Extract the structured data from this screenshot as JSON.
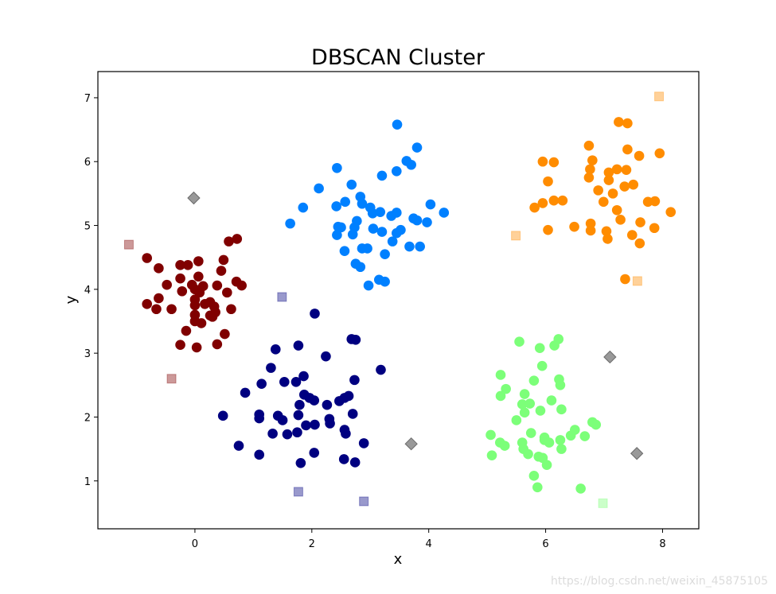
{
  "chart_data": {
    "type": "scatter",
    "title": "DBSCAN Cluster",
    "xlabel": "x",
    "ylabel": "y",
    "xlim": [
      -1.66,
      8.62
    ],
    "ylim": [
      0.25,
      7.41
    ],
    "xticks": [
      0,
      2,
      4,
      6,
      8
    ],
    "yticks": [
      1,
      2,
      3,
      4,
      5,
      6,
      7
    ],
    "grid": false,
    "legend": null,
    "series": [
      {
        "name": "cluster-0",
        "color": "#800000",
        "marker": "circle",
        "points": [
          [
            0.72,
            4.79
          ],
          [
            0.58,
            4.75
          ],
          [
            -0.82,
            4.49
          ],
          [
            -0.62,
            4.33
          ],
          [
            -0.25,
            4.38
          ],
          [
            -0.12,
            4.38
          ],
          [
            0.06,
            4.44
          ],
          [
            0.49,
            4.46
          ],
          [
            0.45,
            4.29
          ],
          [
            -0.48,
            4.07
          ],
          [
            -0.25,
            4.17
          ],
          [
            -0.22,
            3.97
          ],
          [
            -0.05,
            4.07
          ],
          [
            0.06,
            4.2
          ],
          [
            0.14,
            4.05
          ],
          [
            0.38,
            4.06
          ],
          [
            0.71,
            4.12
          ],
          [
            0.8,
            4.06
          ],
          [
            -0.62,
            3.86
          ],
          [
            0.55,
            3.95
          ],
          [
            -0.82,
            3.77
          ],
          [
            -0.66,
            3.69
          ],
          [
            -0.4,
            3.69
          ],
          [
            0.0,
            3.84
          ],
          [
            0.0,
            3.75
          ],
          [
            0.17,
            3.77
          ],
          [
            0.26,
            3.8
          ],
          [
            0.33,
            3.73
          ],
          [
            0.35,
            3.64
          ],
          [
            0.26,
            3.59
          ],
          [
            0.0,
            3.6
          ],
          [
            0.0,
            3.5
          ],
          [
            0.11,
            3.47
          ],
          [
            0.3,
            3.57
          ],
          [
            0.62,
            3.69
          ],
          [
            -0.15,
            3.35
          ],
          [
            0.51,
            3.3
          ],
          [
            0.38,
            3.14
          ],
          [
            -0.25,
            3.13
          ],
          [
            0.03,
            3.09
          ],
          [
            0.0,
            4.0
          ],
          [
            0.08,
            3.95
          ]
        ]
      },
      {
        "name": "cluster-1",
        "color": "#000080",
        "marker": "circle",
        "points": [
          [
            2.05,
            3.62
          ],
          [
            2.68,
            3.22
          ],
          [
            2.75,
            3.21
          ],
          [
            1.38,
            3.06
          ],
          [
            1.77,
            3.12
          ],
          [
            2.24,
            2.95
          ],
          [
            1.3,
            2.77
          ],
          [
            3.18,
            2.74
          ],
          [
            1.14,
            2.52
          ],
          [
            1.53,
            2.55
          ],
          [
            1.73,
            2.55
          ],
          [
            1.86,
            2.64
          ],
          [
            2.73,
            2.58
          ],
          [
            0.86,
            2.38
          ],
          [
            1.87,
            2.35
          ],
          [
            1.96,
            2.3
          ],
          [
            2.04,
            2.26
          ],
          [
            2.63,
            2.33
          ],
          [
            2.56,
            2.3
          ],
          [
            2.47,
            2.25
          ],
          [
            2.26,
            2.19
          ],
          [
            1.79,
            2.19
          ],
          [
            0.48,
            2.02
          ],
          [
            1.1,
            2.04
          ],
          [
            1.1,
            1.98
          ],
          [
            1.42,
            2.02
          ],
          [
            1.5,
            1.95
          ],
          [
            1.77,
            2.03
          ],
          [
            2.7,
            2.05
          ],
          [
            1.9,
            1.87
          ],
          [
            2.05,
            1.88
          ],
          [
            2.3,
            1.97
          ],
          [
            2.31,
            1.9
          ],
          [
            2.56,
            1.8
          ],
          [
            2.58,
            1.74
          ],
          [
            1.33,
            1.74
          ],
          [
            1.58,
            1.73
          ],
          [
            1.75,
            1.76
          ],
          [
            0.75,
            1.55
          ],
          [
            2.89,
            1.59
          ],
          [
            1.1,
            1.41
          ],
          [
            2.04,
            1.44
          ],
          [
            2.55,
            1.34
          ],
          [
            2.74,
            1.29
          ],
          [
            1.81,
            1.28
          ]
        ]
      },
      {
        "name": "cluster-2",
        "color": "#0080ff",
        "marker": "circle",
        "points": [
          [
            3.46,
            6.58
          ],
          [
            3.8,
            6.22
          ],
          [
            3.62,
            6.01
          ],
          [
            3.7,
            5.95
          ],
          [
            2.43,
            5.9
          ],
          [
            3.2,
            5.78
          ],
          [
            3.45,
            5.85
          ],
          [
            2.68,
            5.64
          ],
          [
            2.12,
            5.58
          ],
          [
            2.83,
            5.45
          ],
          [
            2.57,
            5.37
          ],
          [
            4.03,
            5.33
          ],
          [
            1.85,
            5.28
          ],
          [
            2.42,
            5.3
          ],
          [
            2.86,
            5.34
          ],
          [
            3.0,
            5.28
          ],
          [
            3.04,
            5.19
          ],
          [
            3.17,
            5.21
          ],
          [
            3.36,
            5.15
          ],
          [
            3.45,
            5.2
          ],
          [
            4.26,
            5.2
          ],
          [
            1.63,
            5.03
          ],
          [
            2.77,
            5.07
          ],
          [
            2.73,
            4.97
          ],
          [
            2.45,
            4.98
          ],
          [
            2.5,
            4.97
          ],
          [
            3.74,
            5.11
          ],
          [
            3.8,
            5.08
          ],
          [
            3.97,
            5.05
          ],
          [
            3.05,
            4.95
          ],
          [
            3.2,
            4.9
          ],
          [
            3.45,
            4.88
          ],
          [
            3.52,
            4.93
          ],
          [
            2.43,
            4.85
          ],
          [
            2.7,
            4.86
          ],
          [
            3.38,
            4.75
          ],
          [
            3.67,
            4.67
          ],
          [
            3.85,
            4.67
          ],
          [
            2.86,
            4.64
          ],
          [
            2.95,
            4.64
          ],
          [
            2.56,
            4.6
          ],
          [
            3.25,
            4.55
          ],
          [
            2.83,
            4.35
          ],
          [
            2.75,
            4.4
          ],
          [
            3.15,
            4.15
          ],
          [
            3.25,
            4.12
          ],
          [
            2.97,
            4.06
          ]
        ]
      },
      {
        "name": "cluster-3",
        "color": "#ff8c00",
        "marker": "circle",
        "points": [
          [
            7.25,
            6.62
          ],
          [
            7.4,
            6.6
          ],
          [
            6.74,
            6.25
          ],
          [
            7.4,
            6.19
          ],
          [
            7.6,
            6.09
          ],
          [
            7.95,
            6.13
          ],
          [
            5.95,
            6.0
          ],
          [
            6.14,
            5.99
          ],
          [
            6.8,
            6.02
          ],
          [
            6.76,
            5.88
          ],
          [
            7.08,
            5.83
          ],
          [
            7.22,
            5.88
          ],
          [
            7.38,
            5.87
          ],
          [
            6.74,
            5.75
          ],
          [
            7.08,
            5.71
          ],
          [
            6.04,
            5.69
          ],
          [
            6.9,
            5.55
          ],
          [
            7.15,
            5.5
          ],
          [
            7.35,
            5.61
          ],
          [
            7.5,
            5.64
          ],
          [
            6.14,
            5.39
          ],
          [
            6.29,
            5.39
          ],
          [
            5.95,
            5.35
          ],
          [
            6.99,
            5.37
          ],
          [
            7.75,
            5.37
          ],
          [
            7.87,
            5.38
          ],
          [
            5.81,
            5.28
          ],
          [
            7.22,
            5.24
          ],
          [
            8.14,
            5.21
          ],
          [
            7.28,
            5.09
          ],
          [
            7.62,
            5.05
          ],
          [
            6.77,
            5.03
          ],
          [
            6.49,
            4.98
          ],
          [
            6.04,
            4.93
          ],
          [
            6.77,
            4.92
          ],
          [
            7.04,
            4.91
          ],
          [
            7.86,
            4.96
          ],
          [
            7.48,
            4.85
          ],
          [
            7.06,
            4.79
          ],
          [
            7.61,
            4.72
          ],
          [
            7.36,
            4.16
          ]
        ]
      },
      {
        "name": "cluster-4",
        "color": "#7cff79",
        "marker": "circle",
        "points": [
          [
            6.22,
            3.22
          ],
          [
            6.15,
            3.12
          ],
          [
            5.55,
            3.18
          ],
          [
            5.9,
            3.08
          ],
          [
            5.94,
            2.8
          ],
          [
            5.23,
            2.66
          ],
          [
            6.23,
            2.59
          ],
          [
            6.25,
            2.5
          ],
          [
            5.32,
            2.44
          ],
          [
            5.23,
            2.33
          ],
          [
            5.64,
            2.36
          ],
          [
            5.8,
            2.57
          ],
          [
            6.1,
            2.26
          ],
          [
            5.6,
            2.2
          ],
          [
            5.73,
            2.21
          ],
          [
            5.91,
            2.1
          ],
          [
            5.64,
            2.07
          ],
          [
            6.27,
            2.12
          ],
          [
            5.5,
            1.95
          ],
          [
            5.75,
            1.75
          ],
          [
            5.98,
            1.68
          ],
          [
            5.98,
            1.64
          ],
          [
            6.25,
            1.64
          ],
          [
            6.06,
            1.6
          ],
          [
            6.43,
            1.71
          ],
          [
            6.5,
            1.8
          ],
          [
            6.67,
            1.7
          ],
          [
            6.8,
            1.92
          ],
          [
            6.86,
            1.88
          ],
          [
            5.06,
            1.72
          ],
          [
            5.22,
            1.6
          ],
          [
            5.3,
            1.55
          ],
          [
            5.6,
            1.6
          ],
          [
            5.62,
            1.5
          ],
          [
            5.7,
            1.42
          ],
          [
            5.88,
            1.38
          ],
          [
            5.95,
            1.36
          ],
          [
            6.02,
            1.25
          ],
          [
            6.27,
            1.5
          ],
          [
            5.08,
            1.4
          ],
          [
            5.8,
            1.08
          ],
          [
            5.86,
            0.9
          ],
          [
            6.6,
            0.88
          ]
        ]
      },
      {
        "name": "noise",
        "color": "#808080",
        "marker": "diamond",
        "alpha": 0.8,
        "points": [
          [
            -0.02,
            5.43
          ],
          [
            7.1,
            2.94
          ],
          [
            3.7,
            1.58
          ],
          [
            7.56,
            1.43
          ]
        ]
      },
      {
        "name": "border-cluster-0",
        "color": "#800000",
        "marker": "square",
        "alpha": 0.4,
        "points": [
          [
            -1.13,
            4.7
          ],
          [
            -0.4,
            2.6
          ]
        ]
      },
      {
        "name": "border-cluster-1",
        "color": "#000080",
        "marker": "square",
        "alpha": 0.4,
        "points": [
          [
            1.49,
            3.88
          ],
          [
            1.77,
            0.83
          ],
          [
            2.89,
            0.68
          ]
        ]
      },
      {
        "name": "border-cluster-3",
        "color": "#ff8c00",
        "marker": "square",
        "alpha": 0.4,
        "points": [
          [
            7.94,
            7.02
          ],
          [
            5.49,
            4.84
          ],
          [
            7.57,
            4.13
          ]
        ]
      },
      {
        "name": "border-cluster-4",
        "color": "#7cff79",
        "marker": "square",
        "alpha": 0.4,
        "points": [
          [
            6.98,
            0.65
          ]
        ]
      }
    ]
  },
  "watermark": "https://blog.csdn.net/weixin_45875105"
}
